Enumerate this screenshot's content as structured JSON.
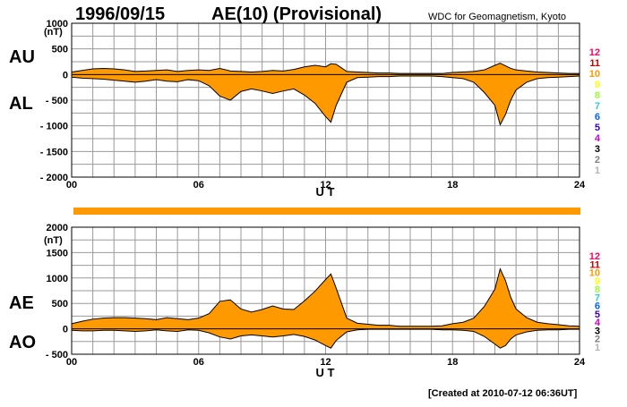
{
  "chart_data": {
    "date": "1996/09/15",
    "title": "AE(10) (Provisional)",
    "source": "WDC for Geomagnetism, Kyoto",
    "created": "[Created at 2010-07-12 06:36UT]",
    "units": "(nT)",
    "colors": {
      "fill": "#ff9900",
      "outline": "#000000",
      "grid": "#9a9a9a"
    },
    "station_scale": {
      "labels": [
        "12",
        "11",
        "10",
        "9",
        "8",
        "7",
        "6",
        "5",
        "4",
        "3",
        "2",
        "1"
      ],
      "colors": [
        "#ff0066",
        "#cc0000",
        "#ff9900",
        "#ffff00",
        "#99ff33",
        "#33cccc",
        "#0066ff",
        "#3300cc",
        "#cc00cc",
        "#000000",
        "#808080",
        "#b3b3b3"
      ]
    },
    "panels": [
      {
        "name": "AU/AL",
        "type": "area",
        "labels_top": "AU",
        "labels_bottom": "AL",
        "xlabel": "U T",
        "xticks": [
          "00",
          "06",
          "12",
          "18",
          "24"
        ],
        "xlim": [
          0,
          24
        ],
        "ylim": [
          -2000,
          1000
        ],
        "yticks": [
          "1000",
          "500",
          "0",
          "- 500",
          "- 1000",
          "- 1500",
          "- 2000"
        ],
        "upper_series": {
          "name": "AU",
          "x": [
            0,
            0.5,
            1,
            1.5,
            2,
            2.5,
            3,
            3.5,
            4,
            4.5,
            5,
            5.5,
            6,
            6.5,
            7,
            7.5,
            8,
            8.5,
            9,
            9.5,
            10,
            10.5,
            11,
            11.5,
            12,
            12.25,
            12.5,
            13,
            13.5,
            14,
            14.5,
            15,
            15.5,
            16,
            16.5,
            17,
            17.5,
            18,
            18.5,
            19,
            19.5,
            20,
            20.25,
            20.5,
            20.75,
            21,
            21.5,
            22,
            22.5,
            23,
            23.5,
            24
          ],
          "values": [
            50,
            80,
            110,
            120,
            110,
            90,
            60,
            70,
            80,
            90,
            60,
            80,
            90,
            80,
            120,
            70,
            60,
            50,
            60,
            80,
            70,
            100,
            150,
            180,
            150,
            210,
            200,
            60,
            50,
            40,
            30,
            30,
            20,
            20,
            20,
            20,
            20,
            40,
            50,
            60,
            90,
            180,
            220,
            170,
            120,
            90,
            70,
            50,
            40,
            30,
            20,
            20
          ]
        },
        "lower_series": {
          "name": "AL",
          "x": [
            0,
            0.5,
            1,
            1.5,
            2,
            2.5,
            3,
            3.5,
            4,
            4.5,
            5,
            5.5,
            6,
            6.5,
            7,
            7.5,
            8,
            8.5,
            9,
            9.5,
            10,
            10.5,
            11,
            11.5,
            12,
            12.25,
            12.5,
            13,
            13.5,
            14,
            14.5,
            15,
            15.5,
            16,
            16.5,
            17,
            17.5,
            18,
            18.5,
            19,
            19.5,
            20,
            20.25,
            20.5,
            20.75,
            21,
            21.5,
            22,
            22.5,
            23,
            23.5,
            24
          ],
          "values": [
            -50,
            -70,
            -80,
            -90,
            -110,
            -130,
            -150,
            -130,
            -100,
            -130,
            -140,
            -100,
            -120,
            -220,
            -420,
            -500,
            -330,
            -280,
            -320,
            -370,
            -320,
            -280,
            -400,
            -560,
            -820,
            -930,
            -600,
            -150,
            -60,
            -50,
            -40,
            -40,
            -30,
            -30,
            -30,
            -30,
            -40,
            -60,
            -80,
            -150,
            -350,
            -600,
            -980,
            -780,
            -500,
            -300,
            -150,
            -80,
            -60,
            -50,
            -40,
            -30
          ]
        }
      },
      {
        "name": "AE/AO",
        "type": "area",
        "labels_top": "AE",
        "labels_bottom": "AO",
        "xlabel": "U T",
        "xticks": [
          "00",
          "06",
          "12",
          "18",
          "24"
        ],
        "xlim": [
          0,
          24
        ],
        "ylim": [
          -500,
          2000
        ],
        "yticks": [
          "2000",
          "1500",
          "1000",
          "500",
          "0",
          "- 500"
        ],
        "upper_series": {
          "name": "AE",
          "x": [
            0,
            0.5,
            1,
            1.5,
            2,
            2.5,
            3,
            3.5,
            4,
            4.5,
            5,
            5.5,
            6,
            6.5,
            7,
            7.5,
            8,
            8.5,
            9,
            9.5,
            10,
            10.5,
            11,
            11.5,
            12,
            12.25,
            12.5,
            13,
            13.5,
            14,
            14.5,
            15,
            15.5,
            16,
            16.5,
            17,
            17.5,
            18,
            18.5,
            19,
            19.5,
            20,
            20.25,
            20.5,
            20.75,
            21,
            21.5,
            22,
            22.5,
            23,
            23.5,
            24
          ],
          "values": [
            100,
            150,
            190,
            210,
            220,
            220,
            210,
            200,
            180,
            220,
            200,
            180,
            210,
            300,
            540,
            570,
            390,
            330,
            380,
            450,
            390,
            380,
            550,
            740,
            970,
            1080,
            800,
            210,
            110,
            90,
            70,
            70,
            50,
            50,
            50,
            50,
            60,
            100,
            130,
            210,
            440,
            780,
            1180,
            950,
            620,
            390,
            220,
            130,
            100,
            80,
            60,
            50
          ]
        },
        "lower_series": {
          "name": "AO",
          "x": [
            0,
            0.5,
            1,
            1.5,
            2,
            2.5,
            3,
            3.5,
            4,
            4.5,
            5,
            5.5,
            6,
            6.5,
            7,
            7.5,
            8,
            8.5,
            9,
            9.5,
            10,
            10.5,
            11,
            11.5,
            12,
            12.25,
            12.5,
            13,
            13.5,
            14,
            14.5,
            15,
            15.5,
            16,
            16.5,
            17,
            17.5,
            18,
            18.5,
            19,
            19.5,
            20,
            20.25,
            20.5,
            20.75,
            21,
            21.5,
            22,
            22.5,
            23,
            23.5,
            24
          ],
          "values": [
            -30,
            -40,
            -40,
            -30,
            -30,
            -40,
            -50,
            -40,
            -20,
            -40,
            -50,
            -20,
            -30,
            -80,
            -160,
            -200,
            -140,
            -120,
            -140,
            -160,
            -140,
            -110,
            -150,
            -220,
            -330,
            -380,
            -230,
            -60,
            -20,
            -10,
            -10,
            -10,
            -10,
            -10,
            -10,
            -10,
            -20,
            -20,
            -30,
            -50,
            -150,
            -300,
            -380,
            -330,
            -200,
            -120,
            -60,
            -30,
            -20,
            -20,
            -10,
            -10
          ]
        }
      }
    ]
  }
}
